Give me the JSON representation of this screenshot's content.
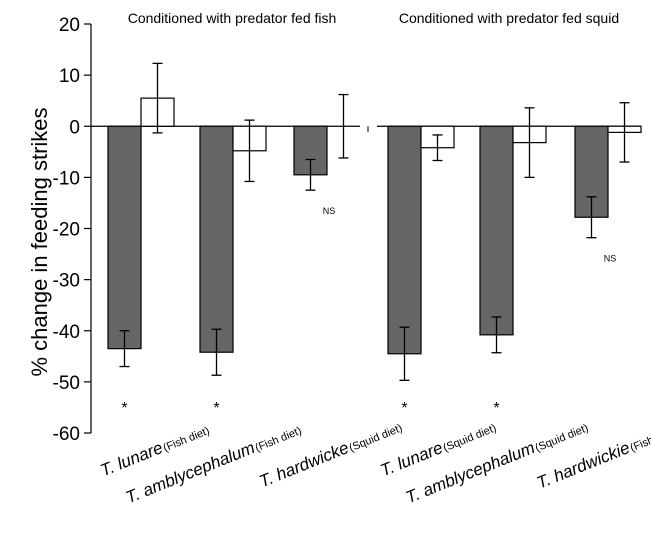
{
  "chart_data": {
    "type": "bar",
    "title": "",
    "panel_titles": [
      "Conditioned with predator fed fish",
      "Conditioned with predator fed squid"
    ],
    "ylabel": "% change in feeding strikes",
    "xlabel": "",
    "ylim": [
      -60,
      20
    ],
    "yticks": [
      "20",
      "10",
      "0",
      "-10",
      "-20",
      "-30",
      "-40",
      "-50",
      "-60"
    ],
    "categories": [
      {
        "name": "T. lunare",
        "diet": "(Fish diet)",
        "panel": 0
      },
      {
        "name": "T. amblycephalum",
        "diet": "(Fish diet)",
        "panel": 0
      },
      {
        "name": "T. hardwicke",
        "diet": "(Squid diet)",
        "panel": 0
      },
      {
        "name": "T. lunare",
        "diet": "(Squid diet)",
        "panel": 1
      },
      {
        "name": "T. amblycephalum",
        "diet": "(Squid diet)",
        "panel": 1
      },
      {
        "name": "T. hardwickie",
        "diet": "(Fish diet)",
        "panel": 1
      }
    ],
    "series": [
      {
        "color": "#666666",
        "values": [
          -43.5,
          -44.2,
          -9.5,
          -44.5,
          -40.8,
          -17.8
        ],
        "errors": [
          3.5,
          4.5,
          3.0,
          5.2,
          3.5,
          4.0
        ]
      },
      {
        "color": "#ffffff",
        "values": [
          5.5,
          -4.8,
          0,
          -4.2,
          -3.2,
          -1.2
        ],
        "errors": [
          6.8,
          6.0,
          6.2,
          2.5,
          6.8,
          5.8
        ]
      }
    ],
    "significance": [
      "*",
      "*",
      "NS",
      "*",
      "*",
      "NS"
    ],
    "grid": false,
    "legend": "none"
  }
}
